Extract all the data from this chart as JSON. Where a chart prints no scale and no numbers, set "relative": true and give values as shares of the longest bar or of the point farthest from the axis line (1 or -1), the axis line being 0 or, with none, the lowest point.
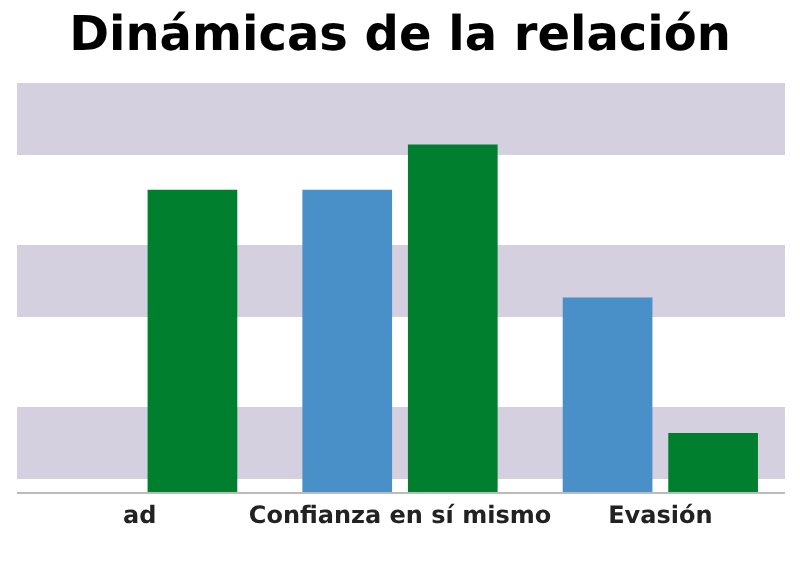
{
  "chart_data": {
    "type": "bar",
    "title": "Dinámicas de la relación",
    "relative": true,
    "categories": [
      "ad",
      "Confianza en sí mismo",
      "Evasión"
    ],
    "series": [
      {
        "color": "#4a90c8",
        "values": [
          null,
          0.87,
          0.56
        ]
      },
      {
        "color": "#00802f",
        "values": [
          0.87,
          1,
          0.17
        ]
      }
    ]
  }
}
